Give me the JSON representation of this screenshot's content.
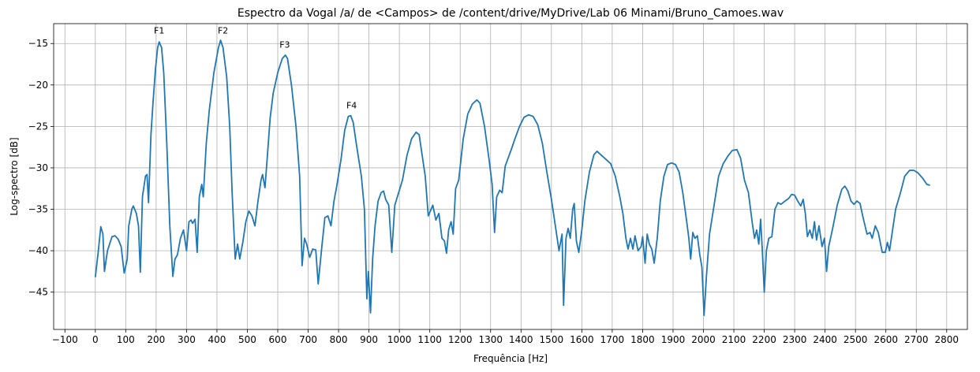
{
  "chart_data": {
    "type": "line",
    "title": "Espectro da Vogal /a/ de <Campos> de /content/drive/MyDrive/Lab 06 Minami/Bruno_Camoes.wav",
    "xlabel": "Frequência [Hz]",
    "ylabel": "Log-spectro [dB]",
    "color": "#1f77b4",
    "grid": true,
    "xlim": [
      -137,
      2868
    ],
    "ylim": [
      -49.5,
      -12.6
    ],
    "xticks": [
      {
        "value": -100,
        "label": "−100"
      },
      0,
      100,
      200,
      300,
      400,
      500,
      600,
      700,
      800,
      900,
      1000,
      1100,
      1200,
      1300,
      1400,
      1500,
      1600,
      1700,
      1800,
      1900,
      2000,
      2100,
      2200,
      2300,
      2400,
      2500,
      2600,
      2700,
      2800
    ],
    "yticks": [
      {
        "value": -45,
        "label": "−45"
      },
      {
        "value": -40,
        "label": "−40"
      },
      {
        "value": -35,
        "label": "−35"
      },
      {
        "value": -30,
        "label": "−30"
      },
      {
        "value": -25,
        "label": "−25"
      },
      {
        "value": -20,
        "label": "−20"
      },
      {
        "value": -15,
        "label": "−15"
      }
    ],
    "annotations": [
      {
        "text": "F1",
        "x": 210,
        "y": -13.8
      },
      {
        "text": "F2",
        "x": 420,
        "y": -13.8
      },
      {
        "text": "F3",
        "x": 623,
        "y": -15.5
      },
      {
        "text": "F4",
        "x": 843,
        "y": -22.8
      }
    ],
    "x": [
      0,
      10,
      18,
      25,
      30,
      40,
      55,
      65,
      75,
      85,
      95,
      105,
      110,
      120,
      125,
      135,
      142,
      148,
      155,
      165,
      170,
      175,
      183,
      190,
      198,
      205,
      210,
      218,
      225,
      235,
      245,
      255,
      262,
      270,
      280,
      290,
      300,
      308,
      315,
      320,
      328,
      335,
      342,
      350,
      355,
      365,
      375,
      390,
      405,
      412,
      420,
      432,
      442,
      450,
      460,
      468,
      475,
      485,
      495,
      505,
      515,
      525,
      535,
      545,
      550,
      558,
      565,
      575,
      585,
      600,
      615,
      625,
      632,
      645,
      660,
      672,
      680,
      688,
      695,
      705,
      715,
      725,
      733,
      745,
      755,
      765,
      775,
      785,
      795,
      808,
      820,
      832,
      840,
      848,
      860,
      875,
      885,
      893,
      898,
      905,
      912,
      920,
      930,
      940,
      948,
      955,
      965,
      975,
      985,
      995,
      1010,
      1025,
      1040,
      1055,
      1065,
      1075,
      1085,
      1095,
      1102,
      1110,
      1120,
      1130,
      1140,
      1148,
      1155,
      1162,
      1170,
      1177,
      1185,
      1195,
      1210,
      1225,
      1240,
      1255,
      1265,
      1280,
      1295,
      1305,
      1313,
      1320,
      1330,
      1338,
      1348,
      1358,
      1368,
      1380,
      1395,
      1410,
      1425,
      1440,
      1455,
      1470,
      1485,
      1500,
      1515,
      1525,
      1535,
      1540,
      1548,
      1555,
      1562,
      1570,
      1575,
      1582,
      1590,
      1600,
      1610,
      1625,
      1640,
      1650,
      1665,
      1680,
      1695,
      1710,
      1725,
      1735,
      1745,
      1752,
      1760,
      1768,
      1775,
      1785,
      1795,
      1800,
      1808,
      1815,
      1822,
      1830,
      1838,
      1848,
      1858,
      1870,
      1882,
      1895,
      1908,
      1920,
      1932,
      1945,
      1952,
      1958,
      1965,
      1972,
      1980,
      1988,
      1995,
      2002,
      2010,
      2020,
      2035,
      2050,
      2065,
      2080,
      2095,
      2110,
      2122,
      2135,
      2148,
      2160,
      2168,
      2175,
      2182,
      2188,
      2193,
      2200,
      2207,
      2215,
      2225,
      2235,
      2245,
      2255,
      2265,
      2280,
      2290,
      2300,
      2310,
      2320,
      2328,
      2335,
      2342,
      2350,
      2358,
      2365,
      2372,
      2380,
      2390,
      2398,
      2405,
      2412,
      2425,
      2440,
      2455,
      2465,
      2475,
      2485,
      2495,
      2505,
      2515,
      2525,
      2538,
      2548,
      2555,
      2565,
      2575,
      2588,
      2598,
      2605,
      2612,
      2620,
      2632,
      2648,
      2662,
      2678,
      2692,
      2705,
      2720,
      2735,
      2745
    ],
    "values": [
      -43.2,
      -40,
      -37.1,
      -38,
      -42.5,
      -40,
      -38.3,
      -38.2,
      -38.6,
      -39.5,
      -42.7,
      -41,
      -37,
      -35,
      -34.6,
      -35.5,
      -37,
      -42.6,
      -33.5,
      -31,
      -30.8,
      -34.2,
      -26,
      -22,
      -18,
      -15.5,
      -14.8,
      -15.5,
      -18.5,
      -27,
      -37,
      -43.1,
      -41,
      -40.5,
      -38.5,
      -37.5,
      -40,
      -36.5,
      -36.3,
      -36.7,
      -36.2,
      -40.2,
      -33.5,
      -32,
      -33.5,
      -27,
      -23,
      -18.5,
      -15.5,
      -14.6,
      -15.5,
      -19,
      -25,
      -33,
      -41,
      -39.2,
      -41,
      -39,
      -36.5,
      -35.2,
      -35.8,
      -37,
      -34,
      -31.5,
      -30.8,
      -32.4,
      -29,
      -24,
      -21,
      -18.5,
      -16.8,
      -16.4,
      -16.8,
      -20,
      -25,
      -31,
      -41.8,
      -38.5,
      -39.2,
      -40.8,
      -39.8,
      -39.9,
      -44,
      -39.5,
      -36,
      -35.8,
      -37,
      -34,
      -32,
      -29,
      -25.5,
      -23.8,
      -23.7,
      -24.5,
      -27.5,
      -31,
      -35,
      -45.8,
      -42.5,
      -47.5,
      -41,
      -37,
      -34,
      -33,
      -32.8,
      -33.8,
      -34.5,
      -40.2,
      -34.5,
      -33.3,
      -31.5,
      -28.5,
      -26.5,
      -25.7,
      -26,
      -28.5,
      -31,
      -35.8,
      -35.2,
      -34.5,
      -36.3,
      -35.5,
      -38.5,
      -38.8,
      -40.3,
      -37.5,
      -36.5,
      -38,
      -32.5,
      -31.5,
      -26.5,
      -23.5,
      -22.3,
      -21.8,
      -22.2,
      -25,
      -29,
      -32,
      -37.8,
      -33.5,
      -32.7,
      -33,
      -29.8,
      -28.8,
      -27.8,
      -26.5,
      -25,
      -23.9,
      -23.6,
      -23.8,
      -24.8,
      -27,
      -30.5,
      -33.8,
      -37.5,
      -40,
      -38,
      -46.6,
      -38.5,
      -37.3,
      -38.5,
      -35,
      -34.3,
      -38.8,
      -40.2,
      -37.5,
      -34,
      -30.5,
      -28.4,
      -28,
      -28.5,
      -29,
      -29.5,
      -31,
      -33.5,
      -35.5,
      -38.5,
      -39.8,
      -38.5,
      -39.8,
      -38.2,
      -40,
      -39.5,
      -38.3,
      -41.5,
      -38,
      -39.2,
      -39.8,
      -41.5,
      -38.5,
      -34,
      -31,
      -29.6,
      -29.4,
      -29.6,
      -30.5,
      -33,
      -36.5,
      -38.5,
      -41,
      -37.8,
      -38.5,
      -38.2,
      -40.5,
      -42,
      -47.8,
      -43,
      -38,
      -34.5,
      -31,
      -29.5,
      -28.6,
      -27.9,
      -27.8,
      -28.8,
      -31.5,
      -33,
      -36.5,
      -38.5,
      -37.5,
      -39.2,
      -36.2,
      -39.5,
      -45,
      -40,
      -38.5,
      -38.3,
      -35,
      -34.2,
      -34.4,
      -34.1,
      -33.7,
      -33.2,
      -33.3,
      -34,
      -34.6,
      -33.8,
      -35.5,
      -38.3,
      -37.5,
      -38.5,
      -36.5,
      -38.7,
      -37,
      -39.5,
      -38.5,
      -42.5,
      -39.5,
      -37.3,
      -34.5,
      -32.6,
      -32.2,
      -32.8,
      -34,
      -34.4,
      -34,
      -34.3,
      -36,
      -38,
      -37.8,
      -38.5,
      -37,
      -37.8,
      -40.2,
      -40.2,
      -39,
      -40,
      -38,
      -35,
      -33,
      -31,
      -30.3,
      -30.3,
      -30.6,
      -31.2,
      -32,
      -32.1
    ]
  }
}
